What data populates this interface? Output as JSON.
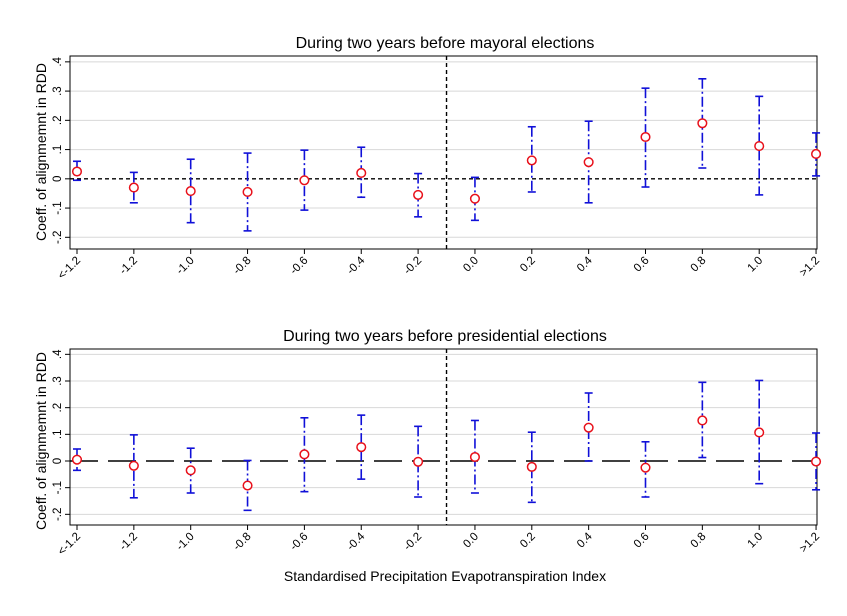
{
  "figure": {
    "xlabel": "Standardised Precipitation Evapotranspiration Index"
  },
  "chart_data": [
    {
      "type": "scatter",
      "title": "During two years before mayoral elections",
      "xlabel": "",
      "ylabel": "Coeff. of alignmemnt in RDD",
      "ylim": [
        -0.24,
        0.42
      ],
      "y_ticks": [
        -0.2,
        -0.1,
        0,
        0.1,
        0.2,
        0.3,
        0.4
      ],
      "y_tick_labels": [
        "-.2",
        "-.1",
        "0",
        ".1",
        ".2",
        ".3",
        ".4"
      ],
      "x_tick_labels": [
        "<-1.2",
        "-1.2",
        "-1.0",
        "-0.8",
        "-0.6",
        "-0.4",
        "-0.2",
        "0.0",
        "0.2",
        "0.4",
        "0.6",
        "0.8",
        "1.0",
        ">1.2"
      ],
      "grid": true,
      "zero_line": "dashed",
      "threshold_after_category": "-0.2",
      "series": [
        {
          "marker": "hollow circle",
          "color": "#e8101a",
          "errorbar_color": "#1010d8",
          "values": [
            0.025,
            -0.03,
            -0.042,
            -0.045,
            -0.005,
            0.02,
            -0.055,
            -0.068,
            0.063,
            0.057,
            0.143,
            0.19,
            0.112,
            0.085
          ],
          "ci_low": [
            -0.005,
            -0.082,
            -0.15,
            -0.178,
            -0.107,
            -0.063,
            -0.13,
            -0.142,
            -0.045,
            -0.082,
            -0.028,
            0.037,
            -0.055,
            0.01
          ],
          "ci_high": [
            0.06,
            0.022,
            0.067,
            0.088,
            0.098,
            0.108,
            0.018,
            0.005,
            0.178,
            0.197,
            0.31,
            0.342,
            0.282,
            0.157
          ]
        }
      ]
    },
    {
      "type": "scatter",
      "title": "During two years before presidential elections",
      "xlabel": "Standardised Precipitation Evapotranspiration Index",
      "ylabel": "Coeff. of alignmemnt in RDD",
      "ylim": [
        -0.24,
        0.42
      ],
      "y_ticks": [
        -0.2,
        -0.1,
        0,
        0.1,
        0.2,
        0.3,
        0.4
      ],
      "y_tick_labels": [
        "-.2",
        "-.1",
        "0",
        ".1",
        ".2",
        ".3",
        ".4"
      ],
      "x_tick_labels": [
        "<-1.2",
        "-1.2",
        "-1.0",
        "-0.8",
        "-0.6",
        "-0.4",
        "-0.2",
        "0.0",
        "0.2",
        "0.4",
        "0.6",
        "0.8",
        "1.0",
        ">1.2"
      ],
      "grid": true,
      "zero_line": "long-dash",
      "threshold_after_category": "-0.2",
      "series": [
        {
          "marker": "hollow circle",
          "color": "#e8101a",
          "errorbar_color": "#1010d8",
          "values": [
            0.005,
            -0.018,
            -0.035,
            -0.092,
            0.025,
            0.052,
            -0.003,
            0.015,
            -0.022,
            0.125,
            -0.025,
            0.152,
            0.107,
            -0.002
          ],
          "ci_low": [
            -0.035,
            -0.138,
            -0.12,
            -0.185,
            -0.115,
            -0.068,
            -0.135,
            -0.12,
            -0.155,
            0.0,
            -0.135,
            0.013,
            -0.085,
            -0.108
          ],
          "ci_high": [
            0.045,
            0.098,
            0.048,
            0.002,
            0.162,
            0.172,
            0.13,
            0.152,
            0.108,
            0.255,
            0.072,
            0.295,
            0.302,
            0.105
          ]
        }
      ]
    }
  ]
}
